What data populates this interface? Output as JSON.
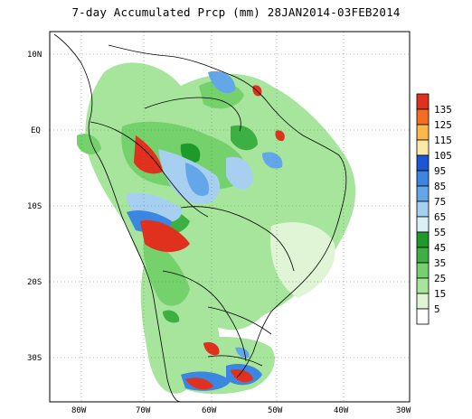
{
  "title": "7-day Accumulated Prcp (mm) 28JAN2014-03FEB2014",
  "map": {
    "lat_labels": [
      "10N",
      "EQ",
      "10S",
      "20S",
      "30S"
    ],
    "lon_labels": [
      "80W",
      "70W",
      "60W",
      "50W",
      "40W",
      "30W"
    ],
    "grid": "dotted"
  },
  "legend": {
    "levels": [
      "135",
      "125",
      "115",
      "105",
      "95",
      "85",
      "75",
      "65",
      "55",
      "45",
      "35",
      "25",
      "15",
      "5"
    ],
    "colors": [
      "#e0301e",
      "#f46d20",
      "#fdb849",
      "#fbe9a5",
      "#1a56d6",
      "#3a86e0",
      "#63a6ea",
      "#a7cff0",
      "#d9f0f7",
      "#1e9a2a",
      "#3cb043",
      "#74d16c",
      "#a7e59c",
      "#dff5d6",
      "#ffffff"
    ]
  }
}
